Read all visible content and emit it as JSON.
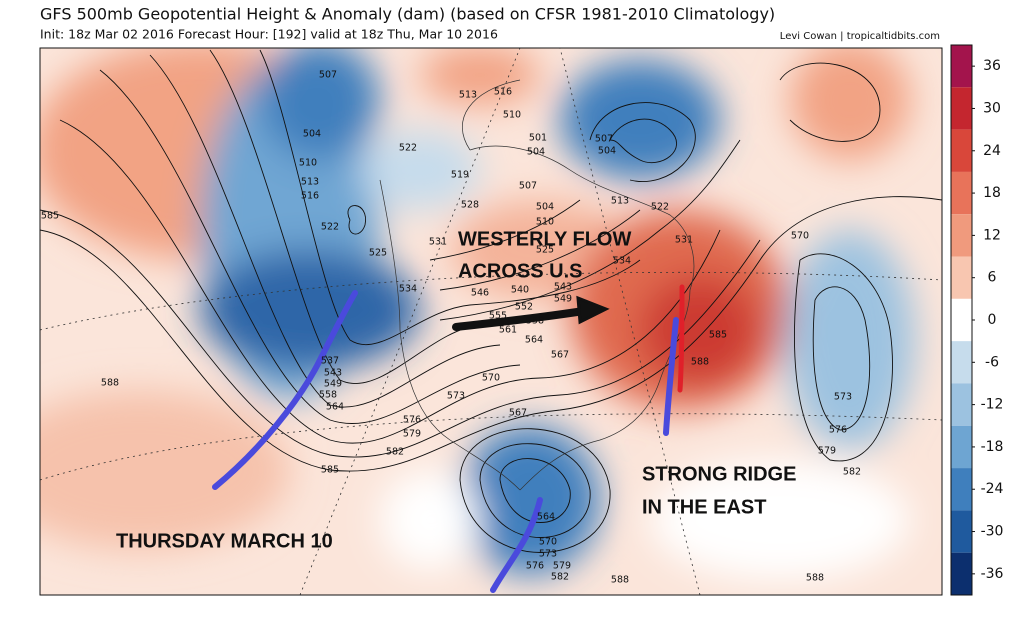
{
  "header": {
    "title": "GFS 500mb Geopotential Height & Anomaly (dam) (based on CFSR 1981-2010 Climatology)",
    "subtitle": "Init: 18z Mar 02 2016   Forecast Hour: [192]   valid at 18z Thu, Mar 10 2016",
    "credit": "Levi Cowan | tropicaltidbits.com"
  },
  "annotations": [
    "WESTERLY FLOW",
    "ACROSS U.S",
    "STRONG RIDGE",
    "IN THE EAST",
    "THURSDAY MARCH 10"
  ],
  "contour_labels": [
    507,
    504,
    510,
    513,
    516,
    522,
    525,
    534,
    585,
    588,
    537,
    543,
    549,
    558,
    564,
    522,
    519,
    528,
    531,
    513,
    516,
    510,
    501,
    504,
    507,
    504,
    510,
    525,
    540,
    546,
    543,
    549,
    552,
    555,
    558,
    561,
    564,
    567,
    570,
    573,
    576,
    579,
    582,
    585,
    567,
    564,
    570,
    573,
    576,
    579,
    582,
    588,
    588,
    582,
    579,
    576,
    573,
    570,
    585,
    588,
    507,
    504,
    513,
    522,
    531,
    534
  ],
  "colorbar": {
    "lim": [
      -39,
      39
    ],
    "ticks": [
      36,
      30,
      24,
      18,
      12,
      6,
      0,
      -6,
      -12,
      -18,
      -24,
      -30,
      -36
    ],
    "colors": [
      "#a3144c",
      "#c4262f",
      "#d9473a",
      "#e8735a",
      "#f09a7d",
      "#f8c6b0",
      "#ffffff",
      "#c6dcec",
      "#9cc2e0",
      "#6ea5d2",
      "#3f7fbd",
      "#1f5a9e",
      "#0c2f6e"
    ]
  }
}
